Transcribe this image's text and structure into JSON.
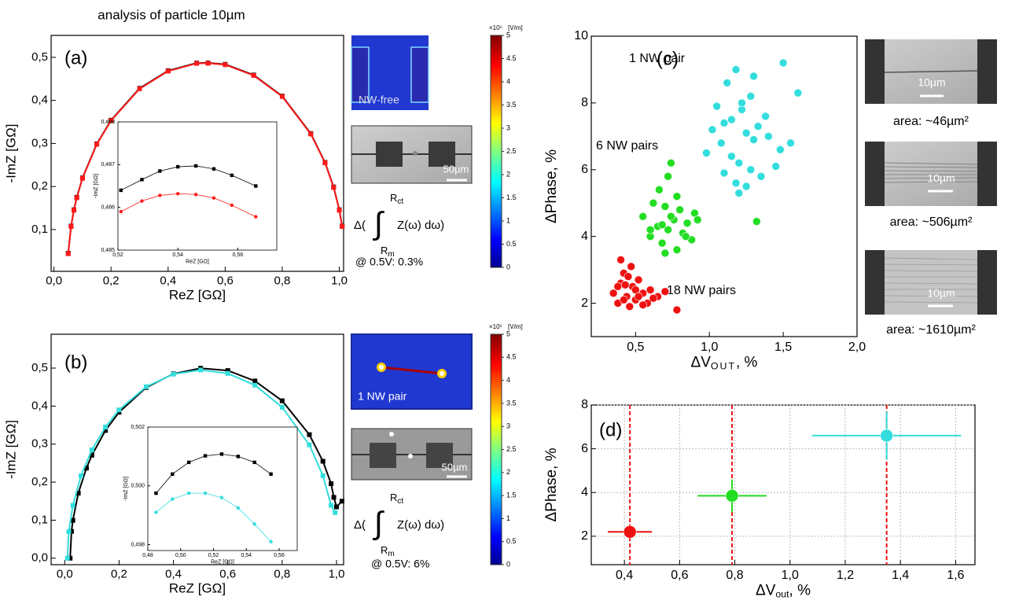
{
  "title": "analysis of particle 10µm",
  "colorbar": {
    "lim": [
      0,
      5
    ],
    "ticks": [
      0,
      0.5,
      1,
      1.5,
      2,
      2.5,
      3,
      3.5,
      4,
      4.5,
      5
    ],
    "scale": "×10⁵",
    "unit": "[V/m]"
  },
  "formula": {
    "prefix": "Δ(",
    "sign": "∫",
    "upper": "R",
    "upper_sub": "ct",
    "lower": "R",
    "lower_sub": "m",
    "integrand": "Z(ω) dω)"
  },
  "panel_a": {
    "field_label": "NW-free",
    "scale_bar": "50µm",
    "note": "@ 0.5V: 0.3%"
  },
  "panel_b": {
    "field_label": "1  NW pair",
    "scale_bar": "50µm",
    "note": "@ 0.5V: 6%"
  },
  "panel_c_images": [
    {
      "scale_bar": "10µm",
      "area": "area: ~46µm²"
    },
    {
      "scale_bar": "10µm",
      "area": "area: ~506µm²"
    },
    {
      "scale_bar": "10µm",
      "area": "area: ~1610µm²"
    }
  ],
  "chart_data": [
    {
      "type": "line",
      "panel_label": "(a)",
      "xlabel": "ReZ [GΩ]",
      "ylabel": "-ImZ [GΩ]",
      "xlim": [
        -0.01,
        1.015
      ],
      "ylim": [
        0.003,
        0.551
      ],
      "xticks": [
        {
          "value": 0,
          "label": "0,0"
        },
        {
          "value": 0.2,
          "label": "0,2"
        },
        {
          "value": 0.4,
          "label": "0,4"
        },
        {
          "value": 0.6,
          "label": "0,6"
        },
        {
          "value": 0.8,
          "label": "0,8"
        },
        {
          "value": 1,
          "label": "1,0"
        }
      ],
      "yticks": [
        {
          "value": 0.1,
          "label": "0,1"
        },
        {
          "value": 0.2,
          "label": "0,2"
        },
        {
          "value": 0.3,
          "label": "0,3"
        },
        {
          "value": 0.4,
          "label": "0,4"
        },
        {
          "value": 0.5,
          "label": "0,5"
        }
      ],
      "series": [
        {
          "color": "#000000",
          "marker": "square",
          "x": [
            0.05,
            0.06,
            0.07,
            0.08,
            0.1,
            0.15,
            0.2,
            0.3,
            0.4,
            0.5,
            0.54,
            0.6,
            0.7,
            0.8,
            0.9,
            0.95,
            0.98,
            1.0,
            1.01
          ],
          "values": [
            0.045,
            0.108,
            0.146,
            0.175,
            0.22,
            0.299,
            0.354,
            0.428,
            0.469,
            0.4868,
            0.487,
            0.4838,
            0.459,
            0.41,
            0.323,
            0.256,
            0.199,
            0.146,
            0.108
          ]
        },
        {
          "color": "#ff1a1a",
          "marker": "square",
          "x": [
            0.05,
            0.06,
            0.07,
            0.08,
            0.1,
            0.15,
            0.2,
            0.3,
            0.4,
            0.5,
            0.54,
            0.6,
            0.7,
            0.8,
            0.9,
            0.95,
            0.98,
            1.0,
            1.01
          ],
          "values": [
            0.044,
            0.107,
            0.145,
            0.174,
            0.219,
            0.298,
            0.353,
            0.427,
            0.468,
            0.486,
            0.4863,
            0.483,
            0.458,
            0.409,
            0.322,
            0.255,
            0.198,
            0.145,
            0.107
          ]
        }
      ]
    },
    {
      "type": "line",
      "xlabel": "ReZ [GΩ]",
      "ylabel": "-ImZ [GΩ]",
      "xlim": [
        0.52,
        0.573
      ],
      "ylim": [
        0.485,
        0.488
      ],
      "xticks": [
        {
          "value": 0.52,
          "label": "0,52"
        },
        {
          "value": 0.54,
          "label": "0,54"
        },
        {
          "value": 0.56,
          "label": "0,56"
        }
      ],
      "yticks": [
        {
          "value": 0.485,
          "label": "0,485"
        },
        {
          "value": 0.486,
          "label": "0,486"
        },
        {
          "value": 0.487,
          "label": "0,487"
        },
        {
          "value": 0.488,
          "label": "0,488"
        }
      ],
      "series": [
        {
          "color": "#000000",
          "marker": "square",
          "x": [
            0.521,
            0.528,
            0.534,
            0.54,
            0.546,
            0.552,
            0.558,
            0.566
          ],
          "values": [
            0.4864,
            0.48665,
            0.48685,
            0.48695,
            0.48697,
            0.4869,
            0.48675,
            0.4865
          ]
        },
        {
          "color": "#ff1a1a",
          "marker": "circle",
          "x": [
            0.521,
            0.528,
            0.534,
            0.54,
            0.546,
            0.552,
            0.558,
            0.566
          ],
          "values": [
            0.4859,
            0.48615,
            0.48628,
            0.48632,
            0.4863,
            0.48622,
            0.48605,
            0.48578
          ]
        }
      ]
    },
    {
      "type": "line",
      "panel_label": "(b)",
      "xlabel": "ReZ [GΩ]",
      "ylabel": "-ImZ [GΩ]",
      "xlim": [
        -0.05,
        1.026
      ],
      "ylim": [
        -0.017,
        0.589
      ],
      "xticks": [
        {
          "value": 0,
          "label": "0,0"
        },
        {
          "value": 0.2,
          "label": "0,2"
        },
        {
          "value": 0.4,
          "label": "0,4"
        },
        {
          "value": 0.6,
          "label": "0,6"
        },
        {
          "value": 0.8,
          "label": "0,8"
        },
        {
          "value": 1,
          "label": "1,0"
        }
      ],
      "yticks": [
        {
          "value": 0,
          "label": "0,0"
        },
        {
          "value": 0.1,
          "label": "0,1"
        },
        {
          "value": 0.2,
          "label": "0,2"
        },
        {
          "value": 0.3,
          "label": "0,3"
        },
        {
          "value": 0.4,
          "label": "0,4"
        },
        {
          "value": 0.5,
          "label": "0,5"
        }
      ],
      "series": [
        {
          "color": "#000000",
          "marker": "square",
          "x": [
            0.02,
            0.025,
            0.03,
            0.05,
            0.08,
            0.1,
            0.15,
            0.2,
            0.3,
            0.4,
            0.5,
            0.6,
            0.7,
            0.8,
            0.9,
            0.95,
            0.98,
            0.99,
            1.0,
            1.02
          ],
          "values": [
            0,
            0.0705,
            0.0995,
            0.171,
            0.237,
            0.271,
            0.336,
            0.384,
            0.449,
            0.485,
            0.4996,
            0.4936,
            0.466,
            0.414,
            0.325,
            0.255,
            0.196,
            0.16,
            0.135,
            0.15
          ]
        },
        {
          "color": "#33dddd",
          "marker": "square",
          "x": [
            0.01,
            0.015,
            0.03,
            0.06,
            0.1,
            0.15,
            0.2,
            0.3,
            0.4,
            0.5,
            0.6,
            0.7,
            0.8,
            0.9,
            0.95,
            0.98,
            0.995
          ],
          "values": [
            0,
            0.07,
            0.139,
            0.217,
            0.285,
            0.345,
            0.39,
            0.451,
            0.484,
            0.495,
            0.486,
            0.455,
            0.397,
            0.298,
            0.217,
            0.139,
            0.12
          ]
        }
      ]
    },
    {
      "type": "line",
      "xlabel": "ReZ [GΩ]",
      "ylabel": "-ImZ [GΩ]",
      "xlim": [
        0.48,
        0.571
      ],
      "ylim": [
        0.4978,
        0.502
      ],
      "xticks": [
        {
          "value": 0.48,
          "label": "0,48"
        },
        {
          "value": 0.5,
          "label": "0,50"
        },
        {
          "value": 0.52,
          "label": "0,52"
        },
        {
          "value": 0.54,
          "label": "0,54"
        },
        {
          "value": 0.56,
          "label": "0,56"
        }
      ],
      "yticks": [
        {
          "value": 0.498,
          "label": "0,498"
        },
        {
          "value": 0.5,
          "label": "0,500"
        },
        {
          "value": 0.502,
          "label": "0,502"
        }
      ],
      "series": [
        {
          "color": "#000000",
          "marker": "square",
          "x": [
            0.485,
            0.495,
            0.505,
            0.515,
            0.525,
            0.535,
            0.545,
            0.555
          ],
          "values": [
            0.49975,
            0.5004,
            0.5008,
            0.50102,
            0.50108,
            0.501,
            0.5008,
            0.5004
          ]
        },
        {
          "color": "#33dddd",
          "marker": "circle",
          "x": [
            0.485,
            0.495,
            0.505,
            0.515,
            0.525,
            0.535,
            0.545,
            0.555
          ],
          "values": [
            0.4991,
            0.49955,
            0.49975,
            0.49975,
            0.4996,
            0.49925,
            0.4987,
            0.4981
          ]
        }
      ]
    },
    {
      "type": "scatter",
      "panel_label": "(c)",
      "xlabel": "ΔV",
      "xlabel_sub": "OUT",
      "xlabel_suffix": ", %",
      "ylabel": "ΔPhase, %",
      "xlim": [
        0.2,
        2.0
      ],
      "ylim": [
        1,
        10
      ],
      "xticks": [
        {
          "value": 0.5,
          "label": "0,5"
        },
        {
          "value": 1,
          "label": "1,0"
        },
        {
          "value": 1.5,
          "label": "1,5"
        },
        {
          "value": 2,
          "label": "2,0"
        }
      ],
      "yticks": [
        2,
        4,
        6,
        8,
        10
      ],
      "annotations": [
        "1 NW pair",
        "6 NW pairs",
        "18 NW pairs"
      ],
      "series": [
        {
          "color": "#33dddd",
          "x": [
            1.02,
            1.08,
            1.12,
            1.15,
            1.18,
            1.2,
            1.22,
            1.25,
            1.28,
            1.3,
            1.33,
            1.35,
            1.1,
            1.05,
            0.98,
            1.4,
            1.45,
            1.5,
            1.55,
            1.6,
            1.25,
            1.15,
            1.3,
            1.2,
            1.38,
            1.48,
            1.1,
            1.18,
            1.28,
            1.22
          ],
          "values": [
            7.2,
            6.8,
            8.6,
            7.5,
            9.0,
            6.2,
            7.8,
            5.5,
            8.2,
            6.9,
            7.3,
            5.8,
            5.9,
            7.9,
            6.5,
            7.0,
            6.1,
            9.2,
            6.8,
            8.3,
            7.1,
            6.4,
            8.8,
            5.3,
            7.6,
            6.6,
            7.4,
            5.6,
            6.0,
            8.0
          ]
        },
        {
          "color": "#22dd22",
          "x": [
            0.55,
            0.6,
            0.62,
            0.65,
            0.68,
            0.7,
            0.72,
            0.74,
            0.76,
            0.78,
            0.8,
            0.82,
            0.85,
            0.88,
            0.9,
            0.66,
            0.7,
            0.74,
            0.78,
            0.6,
            0.84,
            0.72,
            0.92,
            1.32,
            0.68
          ],
          "values": [
            4.6,
            4.0,
            5.0,
            4.3,
            3.8,
            4.9,
            4.2,
            6.2,
            4.5,
            3.6,
            4.8,
            4.1,
            4.4,
            3.9,
            4.7,
            5.4,
            3.5,
            4.6,
            5.2,
            4.2,
            4.0,
            5.8,
            4.5,
            4.45,
            4.35
          ]
        },
        {
          "color": "#ee1111",
          "x": [
            0.35,
            0.38,
            0.4,
            0.42,
            0.44,
            0.46,
            0.48,
            0.5,
            0.52,
            0.55,
            0.58,
            0.6,
            0.65,
            0.7,
            0.78,
            0.4,
            0.45,
            0.5,
            0.42,
            0.38,
            0.55,
            0.62,
            0.47,
            0.43,
            0.52
          ],
          "values": [
            2.3,
            2.0,
            2.6,
            2.9,
            2.2,
            1.9,
            2.5,
            2.1,
            2.7,
            2.3,
            2.0,
            2.4,
            2.2,
            2.35,
            1.8,
            3.3,
            2.8,
            2.4,
            2.1,
            2.5,
            1.95,
            2.15,
            3.1,
            2.55,
            2.2
          ]
        }
      ]
    },
    {
      "type": "scatter",
      "panel_label": "(d)",
      "xlabel": "ΔV",
      "xlabel_sub": "out",
      "xlabel_suffix": ", %",
      "ylabel": "ΔPhase, %",
      "xlim": [
        0.28,
        1.67
      ],
      "ylim": [
        0.7,
        8
      ],
      "grid": true,
      "vline_color": "#ee1111",
      "xticks": [
        {
          "value": 0.4,
          "label": "0,4"
        },
        {
          "value": 0.6,
          "label": "0,6"
        },
        {
          "value": 0.8,
          "label": "0,8"
        },
        {
          "value": 1,
          "label": "1,0"
        },
        {
          "value": 1.2,
          "label": "1,2"
        },
        {
          "value": 1.4,
          "label": "1,4"
        },
        {
          "value": 1.6,
          "label": "1,6"
        }
      ],
      "yticks": [
        2,
        4,
        6,
        8
      ],
      "series": [
        {
          "color": "#ee1111",
          "x": [
            0.42
          ],
          "values": [
            2.2
          ],
          "xerr": [
            0.08
          ],
          "yerr": [
            0.35
          ]
        },
        {
          "color": "#22dd22",
          "x": [
            0.79
          ],
          "values": [
            3.85
          ],
          "xerr": [
            0.125
          ],
          "yerr": [
            0.75
          ]
        },
        {
          "color": "#33dddd",
          "x": [
            1.35
          ],
          "values": [
            6.6
          ],
          "xerr": [
            0.27
          ],
          "yerr": [
            1.1
          ]
        }
      ]
    }
  ]
}
